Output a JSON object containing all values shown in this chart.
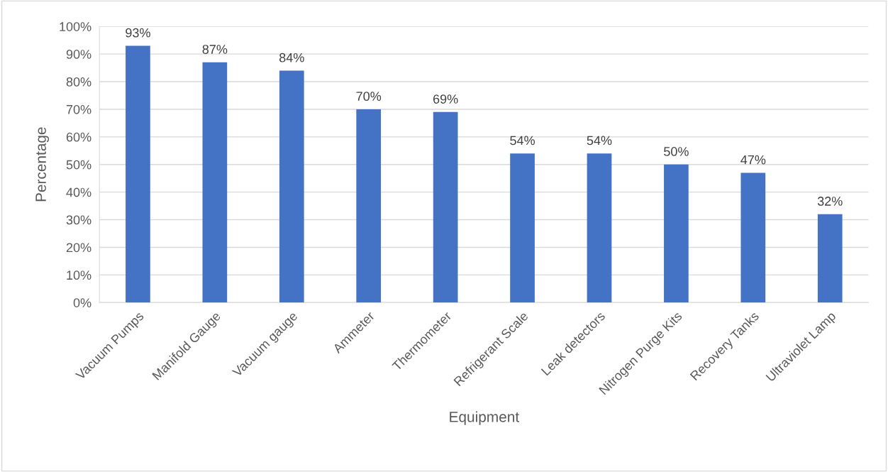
{
  "chart_data": {
    "type": "bar",
    "xlabel": "Equipment",
    "ylabel": "Percentage",
    "categories": [
      "Vacuum Pumps",
      "Manifold Gauge",
      "Vacuum gauge",
      "Ammeter",
      "Thermometer",
      "Refrigerant Scale",
      "Leak detectors",
      "Nitrogen Purge Kits",
      "Recovery Tanks",
      "Ultraviolet Lamp"
    ],
    "values": [
      93,
      87,
      84,
      70,
      69,
      54,
      54,
      50,
      47,
      32
    ],
    "value_labels": [
      "93%",
      "87%",
      "84%",
      "70%",
      "69%",
      "54%",
      "54%",
      "50%",
      "47%",
      "32%"
    ],
    "color": "#4472c4",
    "ylim": [
      0,
      100
    ],
    "yticks": [
      {
        "value": 0,
        "label": "0%"
      },
      {
        "value": 10,
        "label": "10%"
      },
      {
        "value": 20,
        "label": "20%"
      },
      {
        "value": 30,
        "label": "30%"
      },
      {
        "value": 40,
        "label": "40%"
      },
      {
        "value": 50,
        "label": "50%"
      },
      {
        "value": 60,
        "label": "60%"
      },
      {
        "value": 70,
        "label": "70%"
      },
      {
        "value": 80,
        "label": "80%"
      },
      {
        "value": 90,
        "label": "90%"
      },
      {
        "value": 100,
        "label": "100%"
      }
    ],
    "grid": "y"
  }
}
